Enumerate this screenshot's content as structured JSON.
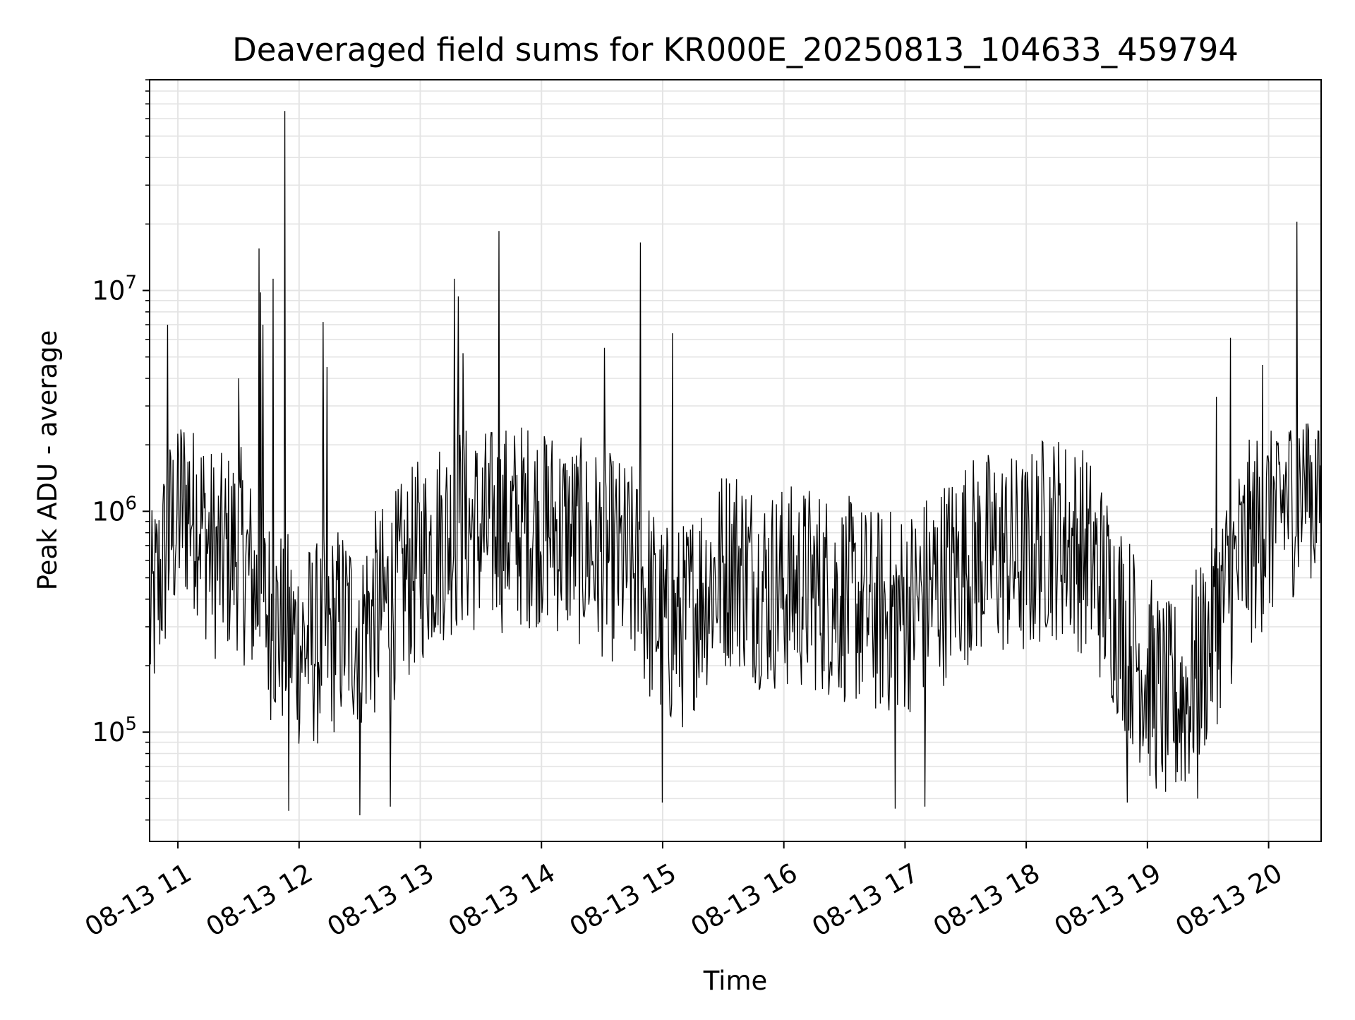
{
  "chart_data": {
    "type": "line",
    "title": "Deaveraged field sums for KR000E_20250813_104633_459794",
    "xlabel": "Time",
    "ylabel": "Peak ADU - average",
    "y_scale": "log",
    "ylim": [
      32000,
      90000000
    ],
    "xlim": [
      "2025-08-13 10:46",
      "2025-08-13 20:26"
    ],
    "grid": true,
    "x_ticks": [
      {
        "t": "2025-08-13 11:00",
        "label": "08-13 11"
      },
      {
        "t": "2025-08-13 12:00",
        "label": "08-13 12"
      },
      {
        "t": "2025-08-13 13:00",
        "label": "08-13 13"
      },
      {
        "t": "2025-08-13 14:00",
        "label": "08-13 14"
      },
      {
        "t": "2025-08-13 15:00",
        "label": "08-13 15"
      },
      {
        "t": "2025-08-13 16:00",
        "label": "08-13 16"
      },
      {
        "t": "2025-08-13 17:00",
        "label": "08-13 17"
      },
      {
        "t": "2025-08-13 18:00",
        "label": "08-13 18"
      },
      {
        "t": "2025-08-13 19:00",
        "label": "08-13 19"
      },
      {
        "t": "2025-08-13 20:00",
        "label": "08-13 20"
      }
    ],
    "y_ticks": [
      {
        "value": 100000,
        "base": "10",
        "exp": "5"
      },
      {
        "value": 1000000,
        "base": "10",
        "exp": "6"
      },
      {
        "value": 10000000,
        "base": "10",
        "exp": "7"
      }
    ],
    "series_color": "#000000",
    "anchors": [
      [
        "2025-08-13 10:46",
        300000
      ],
      [
        "2025-08-13 10:50",
        450000
      ],
      [
        "2025-08-13 10:55",
        700000
      ],
      [
        "2025-08-13 11:00",
        1000000
      ],
      [
        "2025-08-13 11:05",
        1100000
      ],
      [
        "2025-08-13 11:10",
        1000000
      ],
      [
        "2025-08-13 11:15",
        700000
      ],
      [
        "2025-08-13 11:20",
        600000
      ],
      [
        "2025-08-13 11:30",
        700000
      ],
      [
        "2025-08-13 11:40",
        400000
      ],
      [
        "2025-08-13 11:50",
        300000
      ],
      [
        "2025-08-13 12:00",
        250000
      ],
      [
        "2025-08-13 12:10",
        250000
      ],
      [
        "2025-08-13 12:20",
        300000
      ],
      [
        "2025-08-13 12:30",
        300000
      ],
      [
        "2025-08-13 12:40",
        350000
      ],
      [
        "2025-08-13 12:50",
        450000
      ],
      [
        "2025-08-13 13:00",
        600000
      ],
      [
        "2025-08-13 13:10",
        750000
      ],
      [
        "2025-08-13 13:20",
        850000
      ],
      [
        "2025-08-13 13:30",
        800000
      ],
      [
        "2025-08-13 13:45",
        850000
      ],
      [
        "2025-08-13 14:00",
        900000
      ],
      [
        "2025-08-13 14:15",
        750000
      ],
      [
        "2025-08-13 14:30",
        650000
      ],
      [
        "2025-08-13 14:45",
        550000
      ],
      [
        "2025-08-13 15:00",
        300000
      ],
      [
        "2025-08-13 15:10",
        300000
      ],
      [
        "2025-08-13 15:20",
        450000
      ],
      [
        "2025-08-13 15:35",
        600000
      ],
      [
        "2025-08-13 15:50",
        450000
      ],
      [
        "2025-08-13 16:00",
        450000
      ],
      [
        "2025-08-13 16:15",
        450000
      ],
      [
        "2025-08-13 16:30",
        400000
      ],
      [
        "2025-08-13 16:45",
        350000
      ],
      [
        "2025-08-13 17:00",
        350000
      ],
      [
        "2025-08-13 17:15",
        450000
      ],
      [
        "2025-08-13 17:30",
        600000
      ],
      [
        "2025-08-13 17:45",
        650000
      ],
      [
        "2025-08-13 18:00",
        600000
      ],
      [
        "2025-08-13 18:10",
        800000
      ],
      [
        "2025-08-13 18:20",
        750000
      ],
      [
        "2025-08-13 18:30",
        650000
      ],
      [
        "2025-08-13 18:45",
        350000
      ],
      [
        "2025-08-13 19:00",
        180000
      ],
      [
        "2025-08-13 19:10",
        130000
      ],
      [
        "2025-08-13 19:20",
        150000
      ],
      [
        "2025-08-13 19:30",
        250000
      ],
      [
        "2025-08-13 19:40",
        450000
      ],
      [
        "2025-08-13 19:50",
        700000
      ],
      [
        "2025-08-13 20:00",
        900000
      ],
      [
        "2025-08-13 20:10",
        1200000
      ],
      [
        "2025-08-13 20:20",
        1300000
      ],
      [
        "2025-08-13 20:26",
        1100000
      ]
    ],
    "noise_log10_amplitude": 0.48,
    "sample_count": 1500,
    "spikes": [
      [
        "2025-08-13 10:55",
        7000000
      ],
      [
        "2025-08-13 11:30",
        4000000
      ],
      [
        "2025-08-13 11:40",
        15500000
      ],
      [
        "2025-08-13 11:41",
        9800000
      ],
      [
        "2025-08-13 11:42",
        7000000
      ],
      [
        "2025-08-13 11:47",
        11300000
      ],
      [
        "2025-08-13 11:53",
        65000000
      ],
      [
        "2025-08-13 12:12",
        7200000
      ],
      [
        "2025-08-13 12:14",
        4500000
      ],
      [
        "2025-08-13 13:17",
        11300000
      ],
      [
        "2025-08-13 13:19",
        9400000
      ],
      [
        "2025-08-13 13:21",
        5200000
      ],
      [
        "2025-08-13 13:39",
        18600000
      ],
      [
        "2025-08-13 14:31",
        5500000
      ],
      [
        "2025-08-13 14:49",
        16500000
      ],
      [
        "2025-08-13 15:05",
        6400000
      ],
      [
        "2025-08-13 19:34",
        3300000
      ],
      [
        "2025-08-13 19:41",
        6100000
      ],
      [
        "2025-08-13 19:57",
        4600000
      ],
      [
        "2025-08-13 20:14",
        20500000
      ]
    ],
    "dips": [
      [
        "2025-08-13 11:55",
        44000
      ],
      [
        "2025-08-13 12:30",
        42000
      ],
      [
        "2025-08-13 12:45",
        46000
      ],
      [
        "2025-08-13 15:00",
        48000
      ],
      [
        "2025-08-13 16:55",
        45000
      ],
      [
        "2025-08-13 17:10",
        46000
      ],
      [
        "2025-08-13 18:50",
        48000
      ],
      [
        "2025-08-13 19:25",
        50000
      ]
    ]
  }
}
